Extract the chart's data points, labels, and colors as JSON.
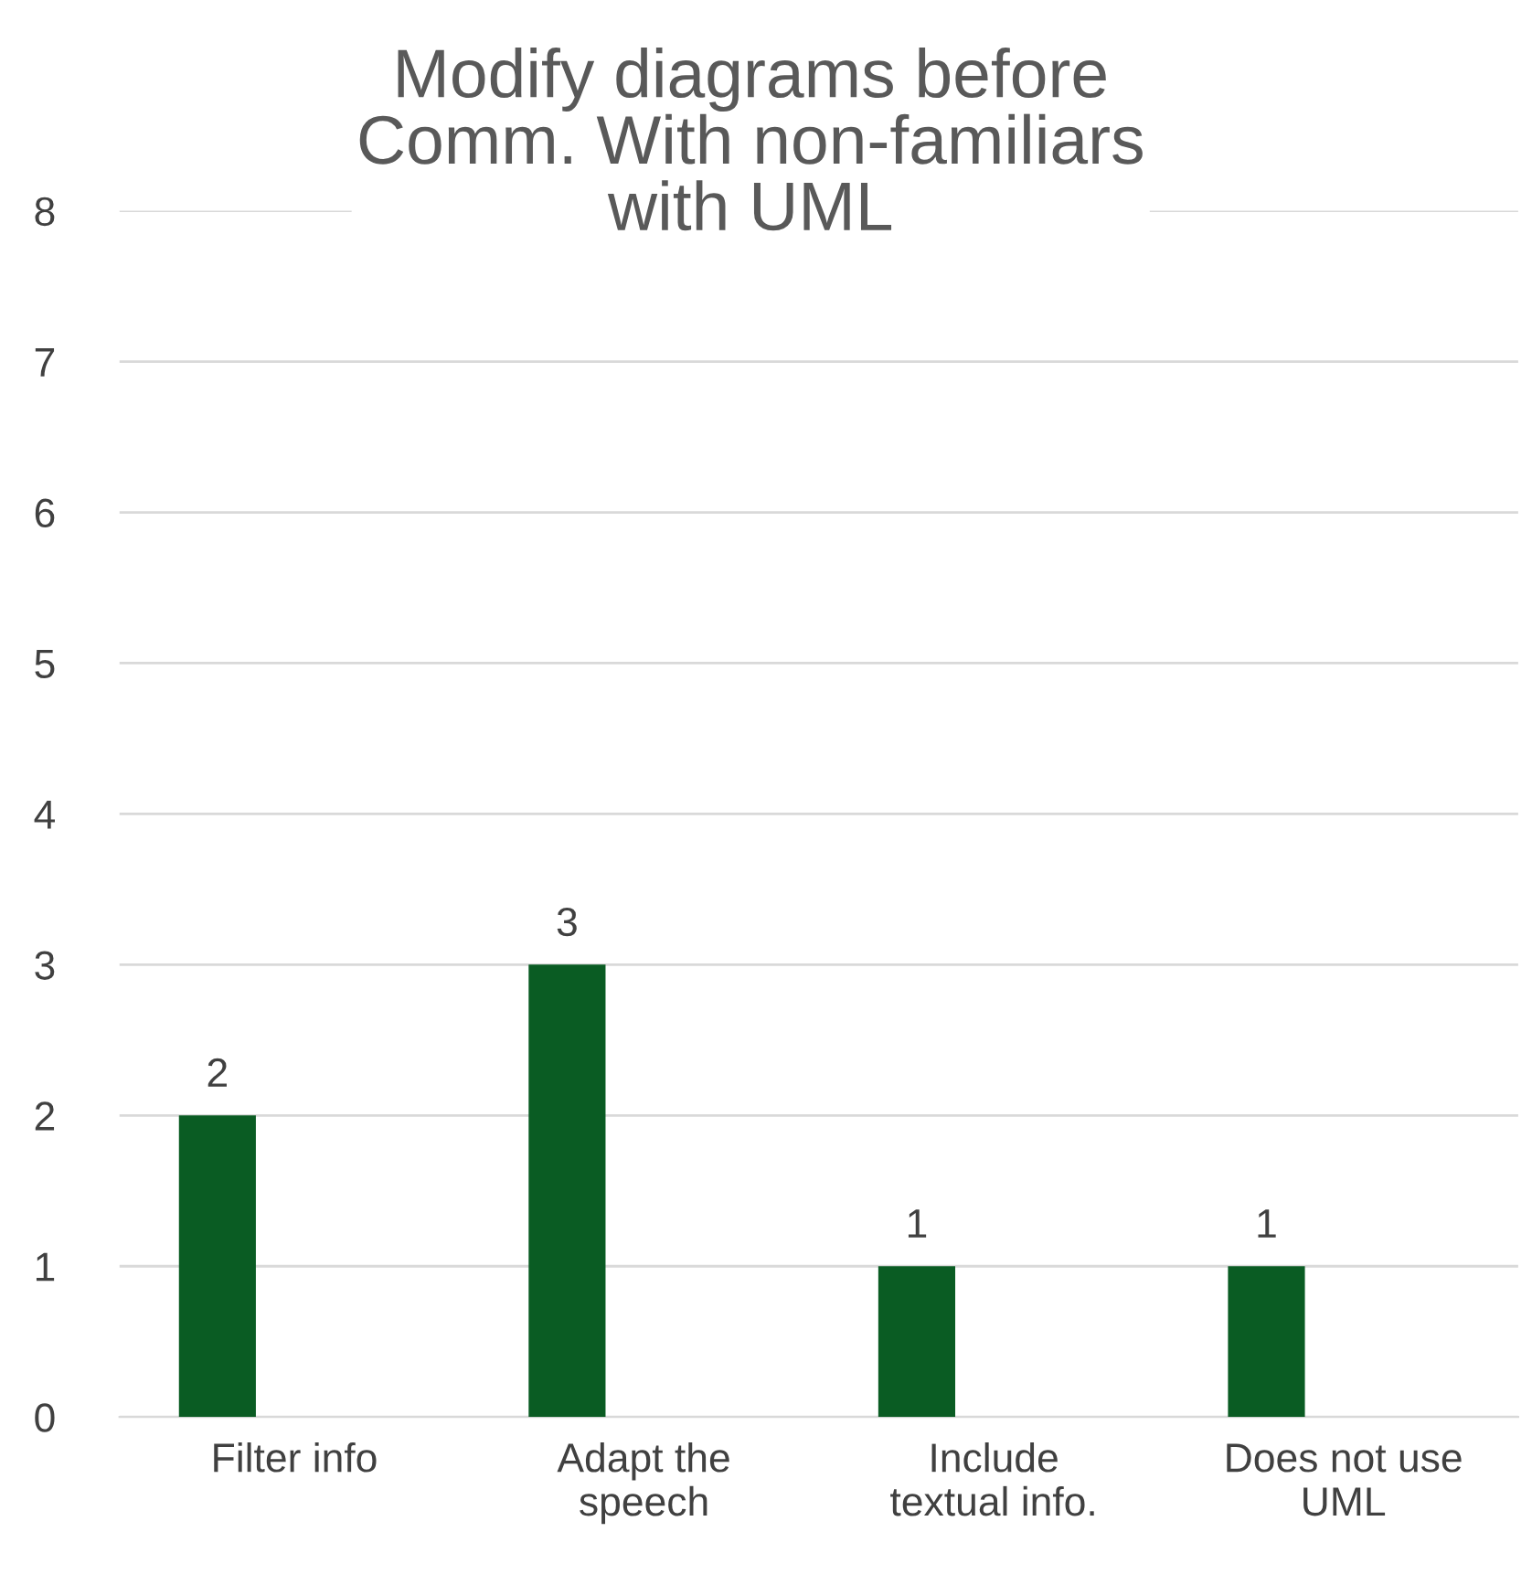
{
  "chart_data": {
    "type": "bar",
    "title": "Modify diagrams before\nComm. With non-familiars\nwith UML",
    "categories": [
      "Filter info",
      "Adapt the\nspeech",
      "Include\ntextual info.",
      "Does not use\nUML"
    ],
    "values": [
      2,
      3,
      1,
      1
    ],
    "color": "#0a5c23",
    "ylim": [
      0,
      8
    ],
    "yticks": [
      0,
      1,
      2,
      3,
      4,
      5,
      6,
      7,
      8
    ],
    "grid": "y",
    "data_labels": true
  }
}
